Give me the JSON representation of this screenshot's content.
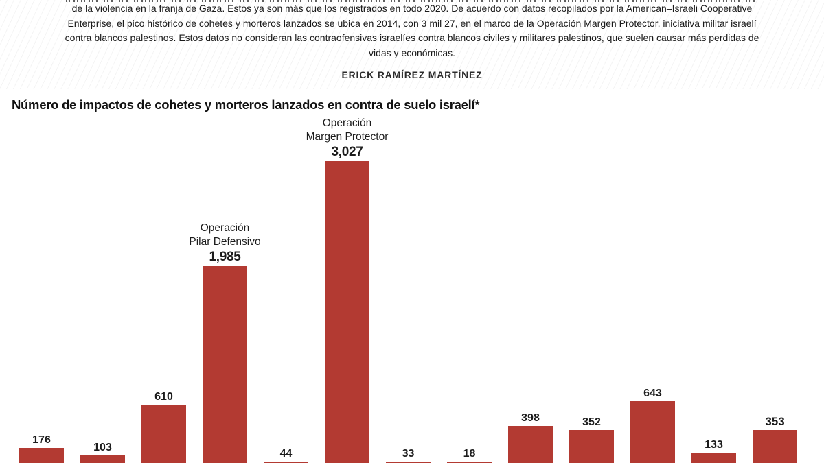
{
  "header": {
    "paragraph": "de la violencia en la franja de Gaza. Estos ya son más que los registrados en todo 2020. De acuerdo con datos recopilados por la American–Israeli Cooperative Enterprise, el pico histórico de cohetes y morteros lanzados se ubica en 2014, con 3 mil 27, en el marco de la Operación Margen Protector, iniciativa militar israelí contra blancos palestinos. Estos datos no consideran las contraofensivas israelíes contra blancos civiles y militares palestinos, que suelen causar más perdidas de vidas y económicas.",
    "byline": "ERICK RAMÍREZ MARTÍNEZ"
  },
  "chart": {
    "title": "Número de impactos de cohetes y morteros lanzados en contra de suelo israelí*",
    "bar_color": "#b33a32",
    "text_color": "#1c1c1c"
  },
  "chart_data": {
    "type": "bar",
    "title": "Número de impactos de cohetes y morteros lanzados en contra de suelo israelí*",
    "values": [
      176,
      103,
      610,
      1985,
      44,
      3027,
      33,
      18,
      398,
      352,
      643,
      133,
      353
    ],
    "value_labels": [
      "176",
      "103",
      "610",
      "1,985",
      "44",
      "3,027",
      "33",
      "18",
      "398",
      "352",
      "643",
      "133",
      "353"
    ],
    "label_style": [
      "normal",
      "normal",
      "normal",
      "big",
      "normal",
      "big",
      "normal",
      "normal",
      "normal",
      "normal",
      "normal",
      "normal",
      "bold"
    ],
    "annotations": [
      {
        "bar_index": 3,
        "lines": [
          "Operación",
          "Pilar Defensivo"
        ]
      },
      {
        "bar_index": 5,
        "lines": [
          "Operación",
          "Margen Protector"
        ]
      }
    ],
    "ylim": [
      0,
      3200
    ],
    "layout": {
      "legend": false,
      "grid": false,
      "x_axis_tick_labels_visible": false,
      "baseline_cropped_at_bottom": true
    }
  }
}
